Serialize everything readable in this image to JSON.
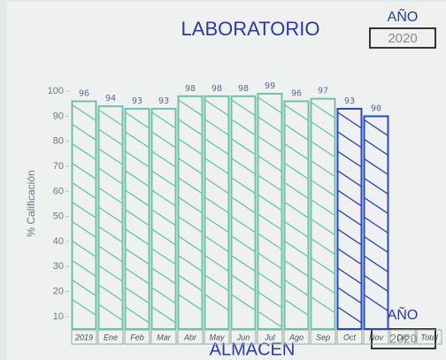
{
  "chart_data": {
    "type": "bar",
    "title": "LABORATORIO",
    "year_label": "AÑO",
    "year": "2020",
    "ylabel": "% Calificación",
    "categories": [
      "2019",
      "Ene",
      "Feb",
      "Mar",
      "Abr",
      "May",
      "Jun",
      "Jul",
      "Ago",
      "Sep",
      "Oct",
      "Nov",
      "Dic",
      "Total"
    ],
    "values": [
      96,
      94,
      93,
      93,
      98,
      98,
      98,
      99,
      96,
      97,
      93,
      90,
      null,
      null
    ],
    "colors": [
      "#6cc4a8",
      "#6cc4a8",
      "#6cc4a8",
      "#6cc4a8",
      "#6cc4a8",
      "#6cc4a8",
      "#6cc4a8",
      "#6cc4a8",
      "#6cc4a8",
      "#6cc4a8",
      "#2848c8",
      "#2848c8",
      "#6cc4a8",
      "#6cc4a8"
    ],
    "ylim": [
      5,
      105
    ],
    "yticks": [
      10,
      20,
      30,
      40,
      50,
      60,
      70,
      80,
      90,
      100
    ],
    "footer_title": "ALMACEN",
    "footer_year_label": "AÑO",
    "footer_year": "2020"
  }
}
